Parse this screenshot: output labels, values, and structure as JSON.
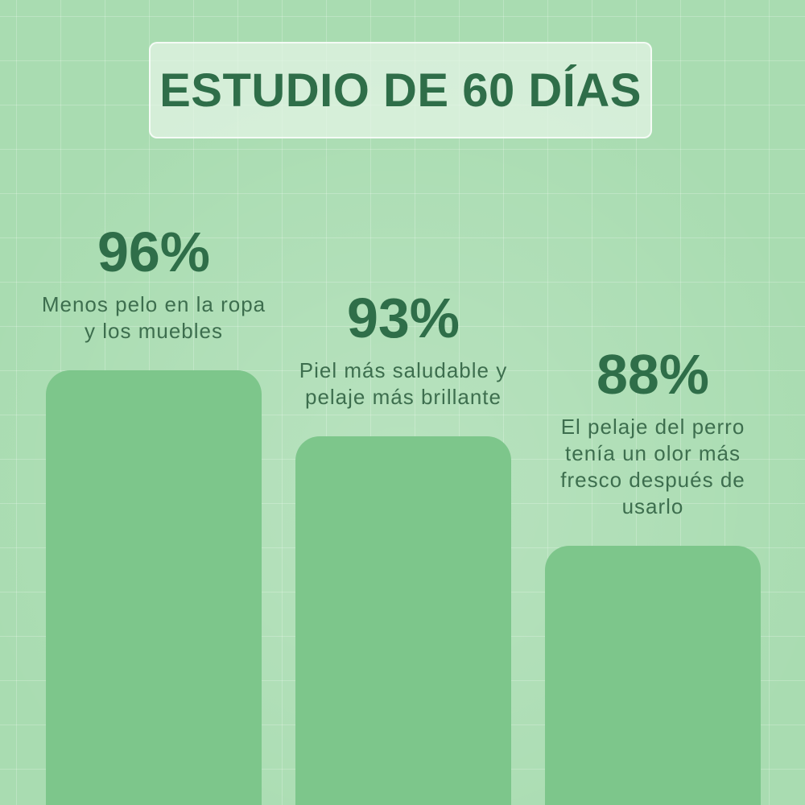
{
  "chart_data": {
    "type": "bar",
    "title": "ESTUDIO DE 60 DÍAS",
    "categories": [
      "Menos pelo en la ropa y los muebles",
      "Piel más saludable y pelaje más brillante",
      "El pelaje del perro tenía un olor más fresco después de usarlo"
    ],
    "values": [
      96,
      93,
      88
    ],
    "value_labels": [
      "96%",
      "93%",
      "88%"
    ],
    "color": "#7dc68b"
  }
}
